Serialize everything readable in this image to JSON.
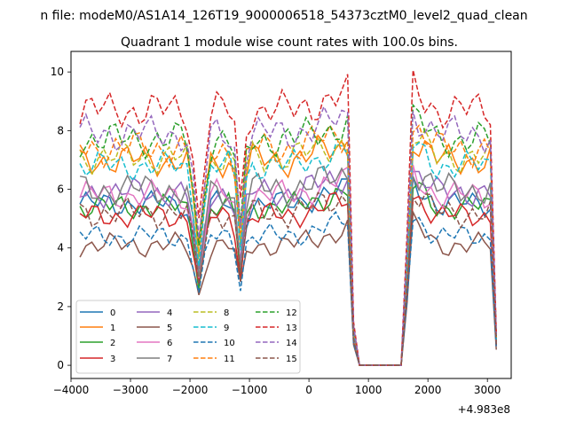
{
  "figure": {
    "suptitle": "n file: modeM0/AS1A14_126T19_9000006518_54373cztM0_level2_quad_clean"
  },
  "chart_data": {
    "type": "line",
    "title": "Quadrant 1 module wise count rates with 100.0s bins.",
    "xlabel": "",
    "ylabel": "",
    "offset_text": "+4.983e8",
    "xlim": [
      -4000,
      3400
    ],
    "ylim": [
      -0.45,
      10.7
    ],
    "xticks": [
      -4000,
      -3000,
      -2000,
      -1000,
      0,
      1000,
      2000,
      3000
    ],
    "xtick_labels": [
      "−4000",
      "−3000",
      "−2000",
      "−1000",
      "0",
      "1000",
      "2000",
      "3000"
    ],
    "yticks": [
      0,
      2,
      4,
      6,
      8,
      10
    ],
    "ytick_labels": [
      "0",
      "2",
      "4",
      "6",
      "8",
      "10"
    ],
    "grid": false,
    "legend": {
      "position": "lower-left",
      "columns": 4
    },
    "x": [
      -3850,
      -3750,
      -3650,
      -3550,
      -3450,
      -3350,
      -3250,
      -3150,
      -3050,
      -2950,
      -2850,
      -2750,
      -2650,
      -2550,
      -2450,
      -2350,
      -2250,
      -2150,
      -2050,
      -1950,
      -1850,
      -1750,
      -1650,
      -1550,
      -1450,
      -1350,
      -1250,
      -1150,
      -1050,
      -950,
      -850,
      -750,
      -650,
      -550,
      -450,
      -350,
      -250,
      -150,
      -50,
      50,
      150,
      250,
      350,
      450,
      550,
      650,
      750,
      850,
      950,
      1050,
      1150,
      1250,
      1350,
      1450,
      1550,
      1650,
      1750,
      1850,
      1950,
      2050,
      2150,
      2250,
      2350,
      2450,
      2550,
      2650,
      2750,
      2850,
      2950,
      3050,
      3150
    ],
    "series": [
      {
        "name": "0",
        "color": "#1f77b4",
        "dash": false,
        "base": 5.5,
        "dip": 0.58,
        "noise": 0.22,
        "phase": 0.0
      },
      {
        "name": "1",
        "color": "#ff7f0e",
        "dash": false,
        "base": 7.0,
        "dip": 0.6,
        "noise": 0.28,
        "phase": 1.1
      },
      {
        "name": "2",
        "color": "#2ca02c",
        "dash": false,
        "base": 5.4,
        "dip": 0.58,
        "noise": 0.22,
        "phase": 2.3
      },
      {
        "name": "3",
        "color": "#d62728",
        "dash": false,
        "base": 5.1,
        "dip": 0.6,
        "noise": 0.22,
        "phase": 3.4
      },
      {
        "name": "4",
        "color": "#9467bd",
        "dash": false,
        "base": 5.9,
        "dip": 0.58,
        "noise": 0.25,
        "phase": 4.2
      },
      {
        "name": "5",
        "color": "#8c564b",
        "dash": false,
        "base": 4.1,
        "dip": 0.63,
        "noise": 0.2,
        "phase": 5.1
      },
      {
        "name": "6",
        "color": "#e377c2",
        "dash": false,
        "base": 5.8,
        "dip": 0.58,
        "noise": 0.25,
        "phase": 6.0
      },
      {
        "name": "7",
        "color": "#7f7f7f",
        "dash": false,
        "base": 6.0,
        "dip": 0.57,
        "noise": 0.28,
        "phase": 6.9
      },
      {
        "name": "8",
        "color": "#bcbd22",
        "dash": true,
        "base": 7.1,
        "dip": 0.6,
        "noise": 0.28,
        "phase": 7.7
      },
      {
        "name": "9",
        "color": "#17becf",
        "dash": true,
        "base": 6.8,
        "dip": 0.6,
        "noise": 0.25,
        "phase": 8.5
      },
      {
        "name": "10",
        "color": "#1f77b4",
        "dash": true,
        "base": 4.4,
        "dip": 0.62,
        "noise": 0.2,
        "phase": 9.3
      },
      {
        "name": "11",
        "color": "#ff7f0e",
        "dash": true,
        "base": 7.4,
        "dip": 0.6,
        "noise": 0.3,
        "phase": 10.1
      },
      {
        "name": "12",
        "color": "#2ca02c",
        "dash": true,
        "base": 7.7,
        "dip": 0.58,
        "noise": 0.3,
        "phase": 10.9
      },
      {
        "name": "13",
        "color": "#d62728",
        "dash": true,
        "base": 8.7,
        "dip": 0.63,
        "noise": 0.32,
        "phase": 11.7
      },
      {
        "name": "14",
        "color": "#9467bd",
        "dash": true,
        "base": 7.9,
        "dip": 0.6,
        "noise": 0.3,
        "phase": 12.5
      },
      {
        "name": "15",
        "color": "#8c564b",
        "dash": true,
        "base": 5.2,
        "dip": 0.6,
        "noise": 0.25,
        "phase": 13.3
      }
    ]
  }
}
